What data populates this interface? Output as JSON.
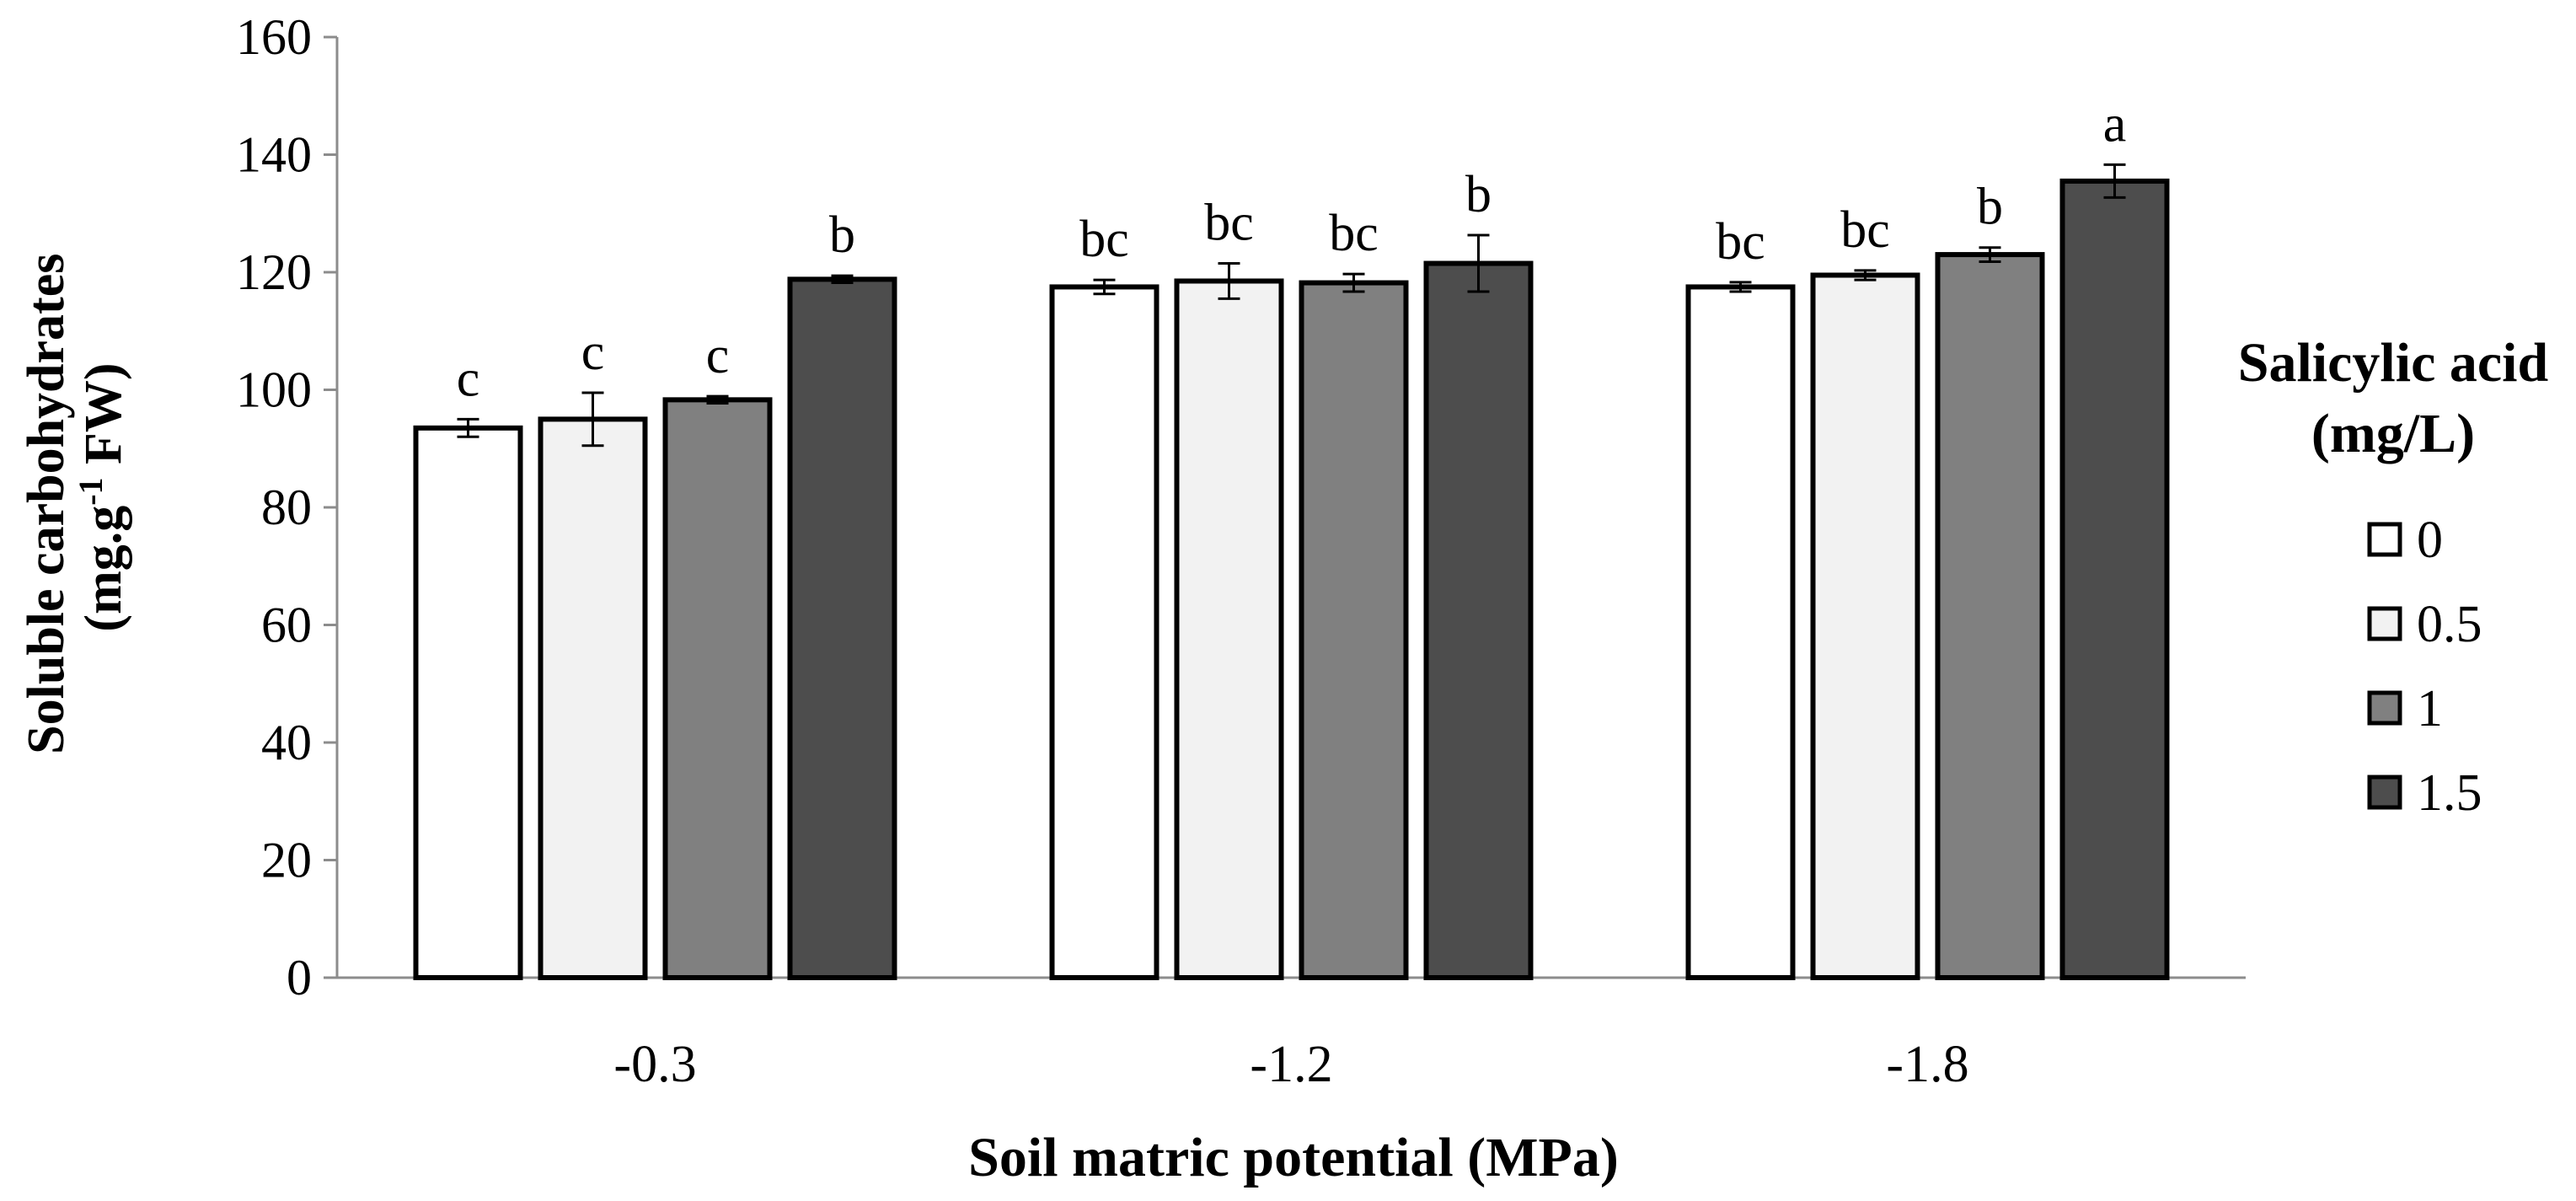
{
  "chart_data": {
    "type": "bar",
    "title": "",
    "xlabel": "Soil matric potential  (MPa)",
    "ylabel": {
      "main": "Soluble carbohydrates",
      "unit_prefix": "(mg.g",
      "unit_sup": "-1",
      "unit_suffix": " FW)"
    },
    "ylim": [
      0,
      160
    ],
    "yticks": [
      0,
      20,
      40,
      60,
      80,
      100,
      120,
      140,
      160
    ],
    "categories": [
      "-0.3",
      "-1.2",
      "-1.8"
    ],
    "legend": {
      "title_lines": [
        "Salicylic acid",
        "(mg/L)"
      ],
      "placement": "right"
    },
    "grid": false,
    "series": [
      {
        "name": "0",
        "color": "#ffffff",
        "values": [
          93.5,
          117.5,
          117.5
        ],
        "errors": [
          1.5,
          1.2,
          0.8
        ],
        "letters": [
          "c",
          "bc",
          "bc"
        ]
      },
      {
        "name": "0.5",
        "color": "#f2f2f2",
        "values": [
          95,
          118.5,
          119.5
        ],
        "errors": [
          4.5,
          3.0,
          0.8
        ],
        "letters": [
          "c",
          "bc",
          "bc"
        ]
      },
      {
        "name": "1",
        "color": "#808080",
        "values": [
          98.3,
          118.2,
          123
        ],
        "errors": [
          0.6,
          1.5,
          1.2
        ],
        "letters": [
          "c",
          "bc",
          "b"
        ]
      },
      {
        "name": "1.5",
        "color": "#4d4d4d",
        "values": [
          118.8,
          121.5,
          135.5
        ],
        "errors": [
          0.6,
          4.8,
          2.8
        ],
        "letters": [
          "b",
          "b",
          "a"
        ]
      }
    ]
  }
}
